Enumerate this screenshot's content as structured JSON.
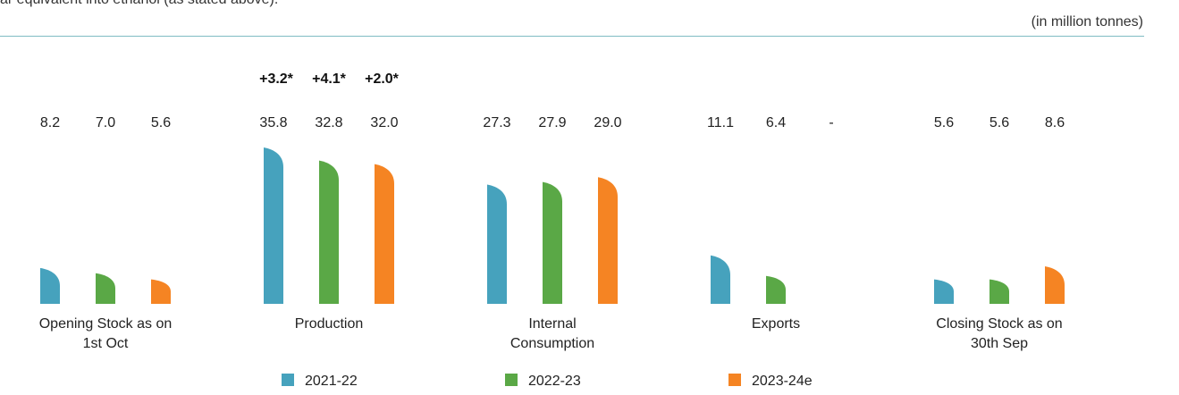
{
  "chart_data": {
    "type": "bar",
    "header_text": "ar equivalent into ethanol (as stated above).",
    "unit_note": "(in million tonnes)",
    "categories": [
      "Opening Stock as on 1st Oct",
      "Production",
      "Internal Consumption",
      "Exports",
      "Closing Stock as on 30th Sep"
    ],
    "series": [
      {
        "name": "2021-22",
        "color": "#46a2bd",
        "values": [
          8.2,
          35.8,
          27.3,
          11.1,
          5.6
        ],
        "value_labels": [
          "8.2",
          "35.8",
          "27.3",
          "11.1",
          "5.6"
        ]
      },
      {
        "name": "2022-23",
        "color": "#5aa846",
        "values": [
          7.0,
          32.8,
          27.9,
          6.4,
          5.6
        ],
        "value_labels": [
          "7.0",
          "32.8",
          "27.9",
          "6.4",
          "5.6"
        ]
      },
      {
        "name": "2023-24e",
        "color": "#f58423",
        "values": [
          5.6,
          32.0,
          29.0,
          null,
          8.6
        ],
        "value_labels": [
          "5.6",
          "32.0",
          "29.0",
          "-",
          "8.6"
        ]
      }
    ],
    "annotations": [
      "+3.2*",
      "+4.1*",
      "+2.0*"
    ]
  }
}
